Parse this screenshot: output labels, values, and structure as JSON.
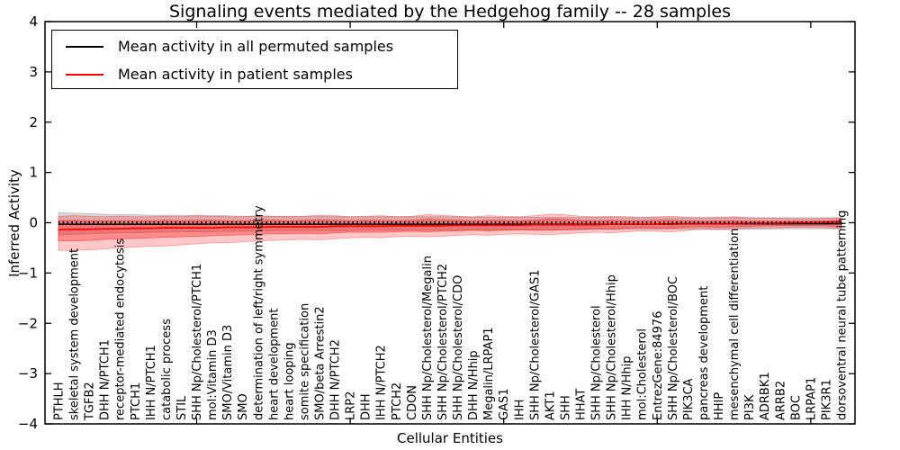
{
  "title": "Signaling events mediated by the Hedgehog family -- 28 samples",
  "legend": {
    "entries": [
      {
        "label": "Mean activity in all permuted samples",
        "color": "#000000"
      },
      {
        "label": "Mean activity in patient samples",
        "color": "#ff0000"
      }
    ]
  },
  "chart_data": {
    "type": "line",
    "title": "Signaling events mediated by the Hedgehog family -- 28 samples",
    "xlabel": "Cellular Entities",
    "ylabel": "Inferred Activity",
    "ylim": [
      -4,
      4
    ],
    "yticks": {
      "values": [
        4,
        3,
        2,
        1,
        0,
        -1,
        -2,
        -3,
        -4
      ],
      "labels": [
        "4",
        "3",
        "2",
        "1",
        "0",
        "−1",
        "−2",
        "−3",
        "−4"
      ]
    },
    "major_x_tick_indices": [
      9,
      19,
      29,
      39,
      49
    ],
    "grid": false,
    "legend_position": "upper left",
    "zero_line": {
      "style": "dashed",
      "color": "#000000",
      "y": 0
    },
    "categories": [
      "PTHLH",
      "skeletal system development",
      "TGFB2",
      "DHH N/PTCH1",
      "receptor-mediated endocytosis",
      "PTCH1",
      "IHH N/PTCH1",
      "catabolic process",
      "STIL",
      "SHH Np/Cholesterol/PTCH1",
      "mol:Vitamin D3",
      "SMO/Vitamin D3",
      "SMO",
      "determination of left/right symmetry",
      "heart development",
      "heart looping",
      "somite specification",
      "SMO/beta Arrestin2",
      "DHH N/PTCH2",
      "LRP2",
      "DHH",
      "IHH N/PTCH2",
      "PTCH2",
      "CDON",
      "SHH Np/Cholesterol/Megalin",
      "SHH Np/Cholesterol/PTCH2",
      "SHH Np/Cholesterol/CDO",
      "DHH N/Hhip",
      "Megalin/LRPAP1",
      "GAS1",
      "IHH",
      "SHH Np/Cholesterol/GAS1",
      "AKT1",
      "SHH",
      "HHAT",
      "SHH Np/Cholesterol",
      "SHH Np/Cholesterol/Hhip",
      "IHH N/Hhip",
      "mol:Cholesterol",
      "EntrezGene:84976",
      "SHH Np/Cholesterol/BOC",
      "PIK3CA",
      "pancreas development",
      "HHIP",
      "mesenchymal cell differentiation",
      "PI3K",
      "ADRBK1",
      "ARRB2",
      "BOC",
      "LRPAP1",
      "PIK3R1",
      "dorsoventral neural tube patterning"
    ],
    "series": [
      {
        "name": "Mean activity in all permuted samples",
        "color": "#000000",
        "values": [
          -0.03,
          -0.03,
          -0.03,
          -0.03,
          -0.03,
          -0.03,
          -0.03,
          -0.03,
          -0.03,
          -0.03,
          -0.03,
          -0.03,
          -0.03,
          -0.03,
          -0.03,
          -0.03,
          -0.03,
          -0.03,
          -0.03,
          -0.03,
          -0.03,
          -0.03,
          -0.03,
          -0.03,
          -0.03,
          -0.03,
          -0.03,
          -0.03,
          -0.03,
          -0.03,
          -0.03,
          -0.03,
          -0.03,
          -0.03,
          -0.03,
          -0.03,
          -0.03,
          -0.03,
          -0.03,
          -0.03,
          -0.02,
          -0.02,
          -0.02,
          -0.02,
          -0.02,
          -0.02,
          -0.02,
          -0.02,
          -0.02,
          -0.02,
          -0.02,
          -0.02
        ]
      },
      {
        "name": "Mean activity in patient samples",
        "color": "#ff0000",
        "values": [
          -0.14,
          -0.13,
          -0.13,
          -0.12,
          -0.12,
          -0.11,
          -0.11,
          -0.1,
          -0.1,
          -0.1,
          -0.1,
          -0.09,
          -0.09,
          -0.09,
          -0.08,
          -0.08,
          -0.08,
          -0.08,
          -0.07,
          -0.07,
          -0.07,
          -0.07,
          -0.06,
          -0.06,
          -0.06,
          -0.06,
          -0.05,
          -0.05,
          -0.05,
          -0.05,
          -0.05,
          -0.04,
          -0.04,
          -0.04,
          -0.04,
          -0.04,
          -0.03,
          -0.03,
          -0.03,
          -0.03,
          -0.03,
          -0.02,
          -0.02,
          -0.02,
          -0.02,
          -0.01,
          -0.01,
          -0.01,
          0.0,
          0.0,
          0.01,
          0.02
        ]
      }
    ],
    "bands": [
      {
        "name": "permuted-samples-range",
        "color": "#999999",
        "opacity": 0.38,
        "upper": [
          0.2,
          0.19,
          0.18,
          0.17,
          0.16,
          0.16,
          0.15,
          0.15,
          0.15,
          0.14,
          0.14,
          0.14,
          0.13,
          0.13,
          0.13,
          0.13,
          0.13,
          0.13,
          0.12,
          0.12,
          0.12,
          0.12,
          0.12,
          0.12,
          0.12,
          0.12,
          0.12,
          0.11,
          0.11,
          0.11,
          0.11,
          0.11,
          0.11,
          0.11,
          0.11,
          0.11,
          0.11,
          0.1,
          0.1,
          0.1,
          0.1,
          0.1,
          0.1,
          0.1,
          0.1,
          0.1,
          0.1,
          0.1,
          0.1,
          0.1,
          0.1,
          0.1
        ],
        "lower": [
          -0.24,
          -0.23,
          -0.22,
          -0.21,
          -0.2,
          -0.2,
          -0.19,
          -0.19,
          -0.18,
          -0.18,
          -0.18,
          -0.17,
          -0.17,
          -0.17,
          -0.16,
          -0.16,
          -0.16,
          -0.16,
          -0.16,
          -0.16,
          -0.15,
          -0.15,
          -0.15,
          -0.15,
          -0.15,
          -0.15,
          -0.15,
          -0.14,
          -0.14,
          -0.14,
          -0.14,
          -0.14,
          -0.14,
          -0.14,
          -0.14,
          -0.13,
          -0.13,
          -0.13,
          -0.13,
          -0.13,
          -0.13,
          -0.13,
          -0.13,
          -0.13,
          -0.13,
          -0.13,
          -0.13,
          -0.12,
          -0.12,
          -0.12,
          -0.12,
          -0.12
        ]
      },
      {
        "name": "patient-samples-range-outer",
        "color": "#ff0000",
        "opacity": 0.22,
        "upper": [
          0.13,
          0.14,
          0.13,
          0.12,
          0.13,
          0.12,
          0.12,
          0.13,
          0.12,
          0.14,
          0.13,
          0.12,
          0.12,
          0.14,
          0.13,
          0.12,
          0.13,
          0.15,
          0.14,
          0.12,
          0.13,
          0.14,
          0.12,
          0.13,
          0.16,
          0.15,
          0.13,
          0.12,
          0.14,
          0.13,
          0.12,
          0.14,
          0.17,
          0.16,
          0.13,
          0.12,
          0.13,
          0.12,
          0.11,
          0.12,
          0.13,
          0.11,
          0.1,
          0.11,
          0.12,
          0.1,
          0.09,
          0.09,
          0.08,
          0.08,
          0.09,
          0.1
        ],
        "lower": [
          -0.55,
          -0.55,
          -0.54,
          -0.52,
          -0.5,
          -0.48,
          -0.47,
          -0.46,
          -0.44,
          -0.42,
          -0.4,
          -0.4,
          -0.38,
          -0.36,
          -0.35,
          -0.34,
          -0.33,
          -0.34,
          -0.32,
          -0.3,
          -0.29,
          -0.3,
          -0.28,
          -0.27,
          -0.28,
          -0.27,
          -0.25,
          -0.24,
          -0.25,
          -0.23,
          -0.22,
          -0.23,
          -0.24,
          -0.22,
          -0.2,
          -0.19,
          -0.2,
          -0.18,
          -0.16,
          -0.17,
          -0.18,
          -0.15,
          -0.13,
          -0.14,
          -0.13,
          -0.11,
          -0.1,
          -0.1,
          -0.09,
          -0.09,
          -0.1,
          -0.12
        ]
      },
      {
        "name": "patient-samples-range-inner",
        "color": "#ff0000",
        "opacity": 0.3,
        "upper": [
          0.04,
          0.05,
          0.04,
          0.04,
          0.04,
          0.04,
          0.04,
          0.05,
          0.04,
          0.05,
          0.05,
          0.04,
          0.04,
          0.05,
          0.05,
          0.04,
          0.05,
          0.06,
          0.05,
          0.04,
          0.05,
          0.05,
          0.04,
          0.05,
          0.07,
          0.06,
          0.05,
          0.04,
          0.05,
          0.05,
          0.04,
          0.05,
          0.08,
          0.07,
          0.05,
          0.04,
          0.05,
          0.04,
          0.04,
          0.05,
          0.05,
          0.04,
          0.03,
          0.04,
          0.04,
          0.03,
          0.03,
          0.03,
          0.03,
          0.03,
          0.04,
          0.05
        ],
        "lower": [
          -0.36,
          -0.36,
          -0.35,
          -0.33,
          -0.32,
          -0.31,
          -0.3,
          -0.29,
          -0.28,
          -0.27,
          -0.26,
          -0.25,
          -0.24,
          -0.23,
          -0.22,
          -0.22,
          -0.21,
          -0.22,
          -0.2,
          -0.19,
          -0.19,
          -0.19,
          -0.18,
          -0.17,
          -0.18,
          -0.17,
          -0.16,
          -0.15,
          -0.16,
          -0.15,
          -0.14,
          -0.15,
          -0.15,
          -0.14,
          -0.13,
          -0.12,
          -0.13,
          -0.11,
          -0.1,
          -0.11,
          -0.11,
          -0.09,
          -0.08,
          -0.09,
          -0.08,
          -0.07,
          -0.06,
          -0.06,
          -0.06,
          -0.06,
          -0.06,
          -0.08
        ]
      }
    ]
  }
}
